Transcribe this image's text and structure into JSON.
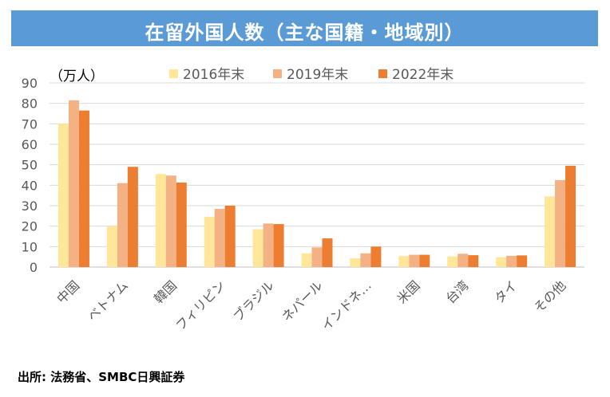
{
  "header": {
    "title": "在留外国人数（主な国籍・地域別）"
  },
  "footer": {
    "source": "出所: 法務省、SMBC日興証券"
  },
  "colors": {
    "header_bg": "#5b9bd5",
    "series": [
      "#ffe699",
      "#f4b183",
      "#ed7d31"
    ],
    "grid": "#d9d9d9",
    "axis_text": "#595959"
  },
  "chart_data": {
    "type": "bar",
    "unit_label": "（万人）",
    "categories": [
      "中国",
      "ベトナム",
      "韓国",
      "フィリピン",
      "ブラジル",
      "ネパール",
      "インドネ…",
      "米国",
      "台湾",
      "タイ",
      "その他"
    ],
    "series": [
      {
        "name": "2016年末",
        "values": [
          70,
          20,
          45.5,
          24.5,
          18.5,
          6.7,
          4.3,
          5.4,
          5.2,
          4.8,
          34.5
        ]
      },
      {
        "name": "2019年末",
        "values": [
          81.5,
          41,
          44.7,
          28.4,
          21.3,
          9.6,
          6.7,
          6,
          6.5,
          5.5,
          42.5
        ]
      },
      {
        "name": "2022年末",
        "values": [
          76.5,
          49,
          41.3,
          30,
          21,
          14,
          10,
          6,
          5.8,
          5.7,
          49.5
        ]
      }
    ],
    "ylim": [
      0,
      90
    ],
    "yticks": [
      0,
      10,
      20,
      30,
      40,
      50,
      60,
      70,
      80,
      90
    ],
    "legend_position": "top",
    "grid": true
  }
}
